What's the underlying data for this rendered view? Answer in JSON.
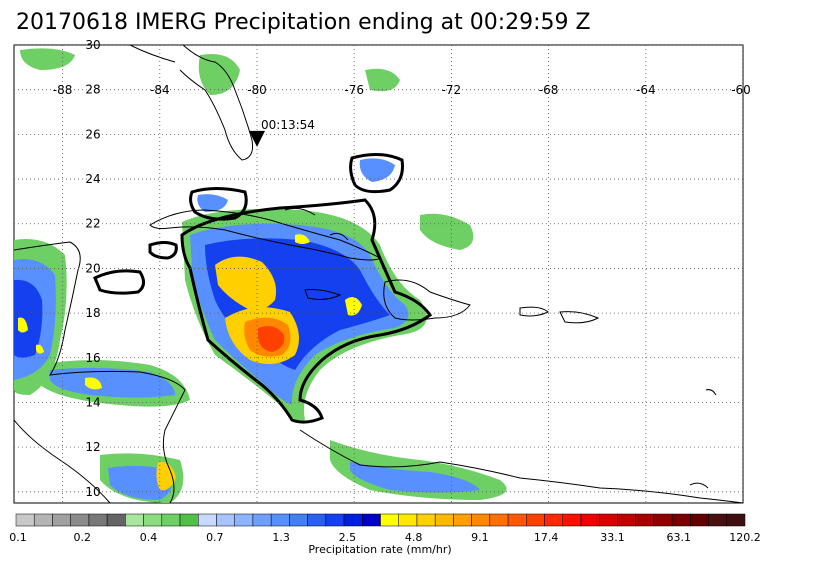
{
  "title": "20170618 IMERG Precipitation ending at 00:29:59 Z",
  "overpass_marker": {
    "label": "00:13:54",
    "lon": -80.0,
    "lat": 25.8
  },
  "map": {
    "lon_range": [
      -90,
      -60
    ],
    "lat_range": [
      9.5,
      30
    ],
    "lon_ticks": [
      "-88",
      "-84",
      "-80",
      "-76",
      "-72",
      "-68",
      "-64",
      "-60"
    ],
    "lat_ticks": [
      "30",
      "28",
      "26",
      "24",
      "22",
      "20",
      "18",
      "16",
      "14",
      "12",
      "10"
    ],
    "grid": "dotted"
  },
  "colorbar": {
    "label": "Precipitation rate (mm/hr)",
    "tick_labels": [
      "0.1",
      "0.2",
      "0.4",
      "0.7",
      "1.3",
      "2.5",
      "4.8",
      "9.1",
      "17.4",
      "33.1",
      "63.1",
      "120.2"
    ],
    "colors": [
      "#c8c8c8",
      "#b4b4b4",
      "#a0a0a0",
      "#8c8c8c",
      "#787878",
      "#646464",
      "#a8e6a0",
      "#8cdc80",
      "#6ecf64",
      "#50c048",
      "#c8d8ff",
      "#a8c4ff",
      "#8cb4ff",
      "#70a0ff",
      "#5890ff",
      "#4080f0",
      "#2a60f0",
      "#1440f0",
      "#0020e0",
      "#0000c8",
      "#ffff00",
      "#ffe800",
      "#ffd000",
      "#ffb800",
      "#ffa000",
      "#ff8800",
      "#ff7000",
      "#ff5800",
      "#ff4000",
      "#ff2800",
      "#ff1000",
      "#f00000",
      "#d80000",
      "#c00000",
      "#a80000",
      "#900000",
      "#780000",
      "#600000",
      "#481010",
      "#401010"
    ]
  }
}
